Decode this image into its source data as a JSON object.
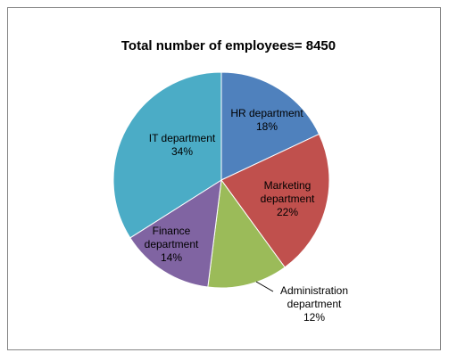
{
  "chart_data": {
    "type": "pie",
    "title": "Total number of employees= 8450",
    "slices": [
      {
        "label_lines": [
          "HR department",
          "18%"
        ],
        "value": 18,
        "color": "#4F81BD"
      },
      {
        "label_lines": [
          "Marketing",
          "department",
          "22%"
        ],
        "value": 22,
        "color": "#C0504D"
      },
      {
        "label_lines": [
          "Administration",
          "department",
          "12%"
        ],
        "value": 12,
        "color": "#9BBB59"
      },
      {
        "label_lines": [
          "Finance",
          "department",
          "14%"
        ],
        "value": 14,
        "color": "#8064A2"
      },
      {
        "label_lines": [
          "IT department",
          "34%"
        ],
        "value": 34,
        "color": "#4BACC6"
      }
    ],
    "start_angle_deg": 0,
    "direction": "clockwise",
    "legend": "none"
  }
}
